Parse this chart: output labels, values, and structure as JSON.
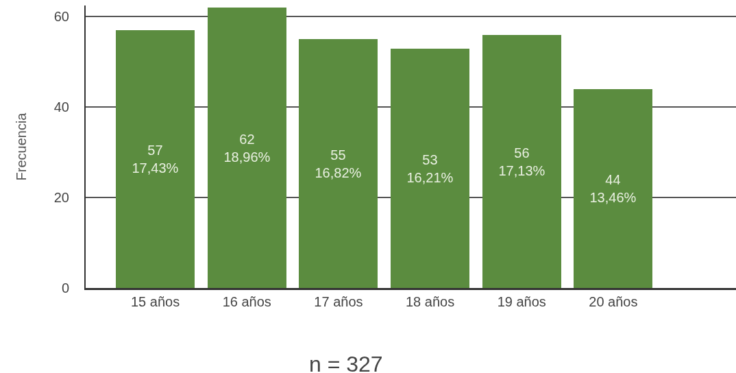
{
  "chart_data": {
    "type": "bar",
    "categories": [
      "15 años",
      "16 años",
      "17 años",
      "18 años",
      "19 años",
      "20 años"
    ],
    "values": [
      57,
      62,
      55,
      53,
      56,
      44
    ],
    "value_labels": [
      "57\n17,43%",
      "62\n18,96%",
      "55\n16,82%",
      "53\n16,21%",
      "56\n17,13%",
      "44\n13,46%"
    ],
    "color": "#5b8c3f",
    "ylabel": "Frecuencia",
    "ylim": [
      0,
      62.5
    ],
    "yticks": [
      0,
      20,
      40,
      60
    ],
    "grid": "y",
    "legend": false,
    "annotations": [
      "n = 327"
    ]
  }
}
